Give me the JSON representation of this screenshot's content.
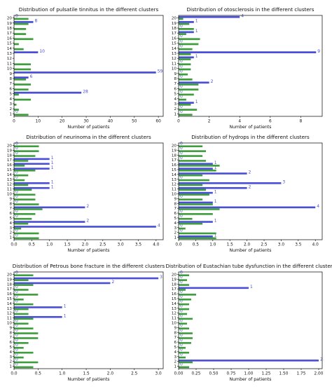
{
  "colors": {
    "blue": "#4a4fd6",
    "green": "#3e9e3e"
  },
  "chart_data": [
    {
      "type": "bar",
      "orientation": "horizontal",
      "title": "Distribution of pulsatile tinnitus in the different clusters",
      "xlabel": "Number of patients",
      "xlim": [
        0,
        62
      ],
      "xticks": [
        0,
        10,
        20,
        30,
        40,
        50,
        60
      ],
      "xtick_labels": [
        "0",
        "10",
        "20",
        "30",
        "40",
        "50",
        "60"
      ],
      "categories": [
        "1",
        "2",
        "3",
        "4",
        "5",
        "6",
        "7",
        "8",
        "9",
        "10",
        "11",
        "12",
        "13",
        "14",
        "15",
        "16",
        "17",
        "18",
        "19",
        "20"
      ],
      "series": [
        {
          "values": [
            0,
            0,
            0,
            0,
            28,
            0,
            0,
            6,
            59,
            0,
            0,
            0,
            10,
            0,
            0,
            0,
            0,
            0,
            8,
            0
          ],
          "value_labels": [
            "0",
            "",
            "",
            "",
            "28",
            "",
            "",
            "6",
            "59",
            "",
            "",
            "",
            "10",
            "",
            "",
            "",
            "",
            "",
            "8",
            "0"
          ]
        },
        {
          "values": [
            6,
            2,
            1,
            7,
            2,
            6,
            7,
            5,
            0,
            7,
            7,
            0,
            0,
            4,
            2,
            8,
            5,
            5,
            6,
            6
          ]
        }
      ]
    },
    {
      "type": "bar",
      "orientation": "horizontal",
      "title": "Distribution of otosclerosis in the different clusters",
      "xlabel": "Number of patients",
      "xlim": [
        0,
        9.4
      ],
      "xticks": [
        0,
        2,
        4,
        6,
        8
      ],
      "xtick_labels": [
        "0",
        "2",
        "4",
        "6",
        "8"
      ],
      "categories": [
        "1",
        "2",
        "3",
        "4",
        "5",
        "6",
        "7",
        "8",
        "9",
        "10",
        "11",
        "12",
        "13",
        "14",
        "15",
        "16",
        "17",
        "18",
        "19",
        "20"
      ],
      "series": [
        {
          "values": [
            0,
            0,
            1,
            0,
            0,
            0,
            2,
            0,
            0,
            0,
            0,
            1,
            9,
            0,
            0,
            0,
            1,
            0,
            1,
            4
          ],
          "value_labels": [
            "0",
            "0",
            "1",
            "0",
            "0",
            "0",
            "2",
            "0",
            "0",
            "0",
            "0",
            "1",
            "9",
            "0",
            "0",
            "0",
            "1",
            "0",
            "1",
            "4"
          ]
        },
        {
          "values": [
            0.9,
            1.2,
            0.8,
            0.5,
            1,
            1.3,
            1.3,
            0.9,
            0.6,
            0.8,
            0.8,
            0.8,
            0.8,
            0.9,
            1.3,
            1.4,
            0.5,
            1,
            0.7,
            0.3
          ]
        }
      ]
    },
    {
      "type": "bar",
      "orientation": "horizontal",
      "title": "Distribution of neurinoma in the different clusters",
      "xlabel": "Number of patients",
      "xlim": [
        0,
        4.2
      ],
      "xticks": [
        0,
        0.5,
        1.0,
        1.5,
        2.0,
        2.5,
        3.0,
        3.5,
        4.0
      ],
      "xtick_labels": [
        "0.0",
        "0.5",
        "1.0",
        "1.5",
        "2.0",
        "2.5",
        "3.0",
        "3.5",
        "4.0"
      ],
      "categories": [
        "1",
        "2",
        "3",
        "4",
        "5",
        "6",
        "7",
        "8",
        "9",
        "10",
        "11",
        "12",
        "13",
        "14",
        "15",
        "16",
        "17",
        "18",
        "19",
        "20"
      ],
      "series": [
        {
          "values": [
            0,
            0,
            4,
            2,
            0,
            0,
            2,
            0,
            0,
            0,
            1,
            1,
            0,
            0,
            1,
            1,
            1,
            0,
            0,
            0
          ],
          "value_labels": [
            "0",
            "0",
            "4",
            "2",
            "0",
            "0",
            "2",
            "0",
            "0",
            "0",
            "1",
            "1",
            "0",
            "0",
            "1",
            "1",
            "1",
            "0",
            "0",
            "0"
          ]
        },
        {
          "values": [
            0.7,
            0.7,
            0.2,
            0.4,
            0.5,
            0.6,
            0.8,
            0.7,
            0.6,
            0.6,
            0.5,
            0.4,
            0.3,
            0.4,
            0.6,
            0.3,
            0.4,
            0.6,
            0.7,
            0.7
          ]
        }
      ]
    },
    {
      "type": "bar",
      "orientation": "horizontal",
      "title": "Distribution of hydrops in the different clusters",
      "xlabel": "Number of patients",
      "xlim": [
        0,
        4.2
      ],
      "xticks": [
        0,
        0.5,
        1.0,
        1.5,
        2.0,
        2.5,
        3.0,
        3.5,
        4.0
      ],
      "xtick_labels": [
        "0.0",
        "0.5",
        "1.0",
        "1.5",
        "2.0",
        "2.5",
        "3.0",
        "3.5",
        "4.0"
      ],
      "categories": [
        "1",
        "2",
        "3",
        "4",
        "5",
        "6",
        "7",
        "8",
        "9",
        "10",
        "11",
        "12",
        "13",
        "14",
        "15",
        "16",
        "17",
        "18",
        "19",
        "20"
      ],
      "series": [
        {
          "values": [
            1,
            0,
            0,
            1,
            0,
            0,
            4,
            1,
            0,
            1,
            2,
            3,
            0,
            2,
            1,
            1,
            0,
            0,
            0,
            0
          ],
          "value_labels": [
            "1",
            "0",
            "0",
            "1",
            "0",
            "0",
            "4",
            "1",
            "0",
            "1",
            "2",
            "3",
            "0",
            "2",
            "1",
            "1",
            "0",
            "0",
            "0",
            "0"
          ]
        },
        {
          "values": [
            1.1,
            1.1,
            0.2,
            0.7,
            0.4,
            1,
            1.2,
            1,
            0.7,
            0.9,
            0.8,
            0.7,
            0.9,
            0.7,
            1.1,
            1.2,
            0.8,
            0.7,
            0.8,
            0.7
          ]
        }
      ]
    },
    {
      "type": "bar",
      "orientation": "horizontal",
      "title": "Distribution of Petrous bone fracture in the different clusters",
      "xlabel": "Number of patients",
      "xlim": [
        0,
        3.1
      ],
      "xticks": [
        0,
        0.5,
        1.0,
        1.5,
        2.0,
        2.5,
        3.0
      ],
      "xtick_labels": [
        "0.0",
        "0.5",
        "1.0",
        "1.5",
        "2.0",
        "2.5",
        "3.0"
      ],
      "categories": [
        "1",
        "2",
        "3",
        "4",
        "5",
        "6",
        "7",
        "8",
        "9",
        "10",
        "11",
        "12",
        "13",
        "14",
        "15",
        "16",
        "17",
        "18",
        "19",
        "20"
      ],
      "series": [
        {
          "values": [
            0,
            0,
            0,
            0,
            0,
            0,
            0,
            0,
            0,
            0,
            1,
            0,
            1,
            0,
            0,
            0,
            0,
            2,
            3,
            0
          ],
          "value_labels": [
            "0",
            "0",
            "0",
            "0",
            "0",
            "0",
            "0",
            "0",
            "0",
            "0",
            "1",
            "0",
            "1",
            "0",
            "0",
            "0",
            "0",
            "2",
            "3",
            "0"
          ]
        },
        {
          "values": [
            0.4,
            0.5,
            0.2,
            0.4,
            0.2,
            0.3,
            0.5,
            0.5,
            0.4,
            0.3,
            0.4,
            0.3,
            0.3,
            0.4,
            0.2,
            0.5,
            0.3,
            0.4,
            0.3,
            0.4
          ]
        }
      ]
    },
    {
      "type": "bar",
      "orientation": "horizontal",
      "title": "Distribution of Eustachian tube dysfunction in the different clusters",
      "xlabel": "Number of patients",
      "xlim": [
        0,
        2.05
      ],
      "xticks": [
        0,
        0.25,
        0.5,
        0.75,
        1.0,
        1.25,
        1.5,
        1.75,
        2.0
      ],
      "xtick_labels": [
        "0.00",
        "0.25",
        "0.50",
        "0.75",
        "1.00",
        "1.25",
        "1.50",
        "1.75",
        "2.00"
      ],
      "categories": [
        "1",
        "2",
        "3",
        "4",
        "5",
        "6",
        "7",
        "8",
        "9",
        "10",
        "11",
        "12",
        "13",
        "14",
        "15",
        "16",
        "17",
        "18",
        "19",
        "20"
      ],
      "series": [
        {
          "values": [
            0,
            2,
            0,
            0,
            0,
            0,
            0,
            0,
            0,
            0,
            0,
            0,
            0,
            0,
            0,
            0,
            1,
            0,
            0,
            0
          ],
          "value_labels": [
            "0",
            "2",
            "0",
            "0",
            "0",
            "0",
            "0",
            "0",
            "0",
            "0",
            "0",
            "0",
            "0",
            "0",
            "0",
            "0",
            "1",
            "0",
            "0",
            "0"
          ]
        },
        {
          "values": [
            0.15,
            0.2,
            0.1,
            0.15,
            0.1,
            0.18,
            0.2,
            0.2,
            0.15,
            0.12,
            0.2,
            0.12,
            0.15,
            0.15,
            0.18,
            0.25,
            0.1,
            0.15,
            0.12,
            0.15
          ]
        }
      ]
    }
  ]
}
